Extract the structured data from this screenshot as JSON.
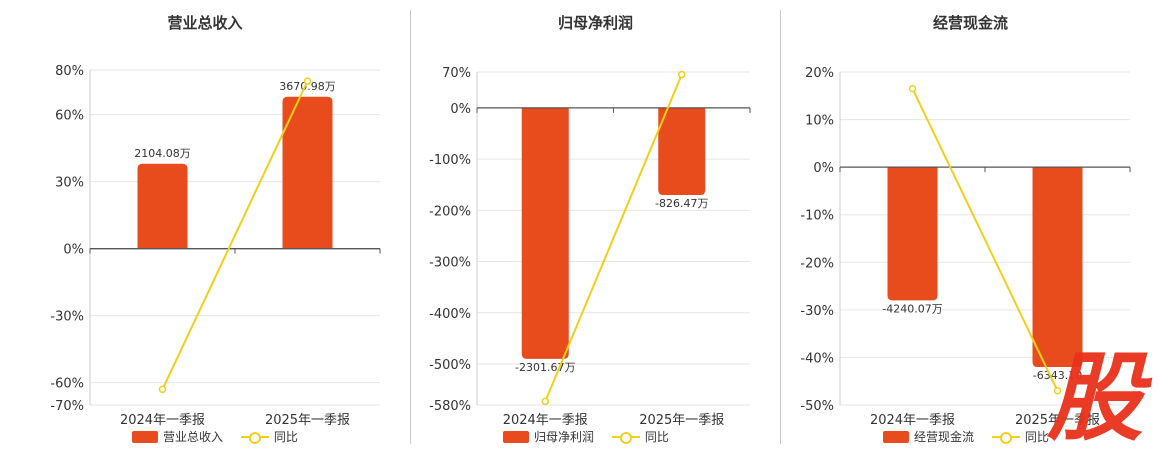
{
  "colors": {
    "bar": "#e84c1c",
    "line": "#f0d01a",
    "axis": "#555555",
    "grid": "#e6e6e6",
    "watermark": "#e8311a"
  },
  "legend": {
    "yoy_label": "同比"
  },
  "watermark_icon": "gu-stock-logo",
  "watermark_text": "股",
  "chart_data": [
    {
      "type": "bar",
      "title": "营业总收入",
      "categories": [
        "2024年一季报",
        "2025年一季报"
      ],
      "series": [
        {
          "name": "营业总收入",
          "type": "bar",
          "values": [
            38,
            68
          ],
          "labels": [
            "2104.08万",
            "3670.98万"
          ]
        },
        {
          "name": "同比",
          "type": "line",
          "values": [
            -63,
            75
          ]
        }
      ],
      "yticks": [
        "80%",
        "60%",
        "30%",
        "0%",
        "-30%",
        "-60%",
        "-70%"
      ],
      "ylim": [
        -70,
        80
      ]
    },
    {
      "type": "bar",
      "title": "归母净利润",
      "categories": [
        "2024年一季报",
        "2025年一季报"
      ],
      "series": [
        {
          "name": "归母净利润",
          "type": "bar",
          "values": [
            -490,
            -170
          ],
          "labels": [
            "-2301.67万",
            "-826.47万"
          ]
        },
        {
          "name": "同比",
          "type": "line",
          "values": [
            -573,
            65
          ]
        }
      ],
      "yticks": [
        "70%",
        "0%",
        "-100%",
        "-200%",
        "-300%",
        "-400%",
        "-500%",
        "-580%"
      ],
      "ylim": [
        -580,
        70
      ]
    },
    {
      "type": "bar",
      "title": "经营现金流",
      "categories": [
        "2024年一季报",
        "2025年一季报"
      ],
      "series": [
        {
          "name": "经营现金流",
          "type": "bar",
          "values": [
            -28,
            -42
          ],
          "labels": [
            "-4240.07万",
            "-6343.10"
          ]
        },
        {
          "name": "同比",
          "type": "line",
          "values": [
            16.5,
            -47
          ]
        }
      ],
      "yticks": [
        "20%",
        "10%",
        "0%",
        "-10%",
        "-20%",
        "-30%",
        "-40%",
        "-50%"
      ],
      "ylim": [
        -50,
        20
      ]
    }
  ]
}
